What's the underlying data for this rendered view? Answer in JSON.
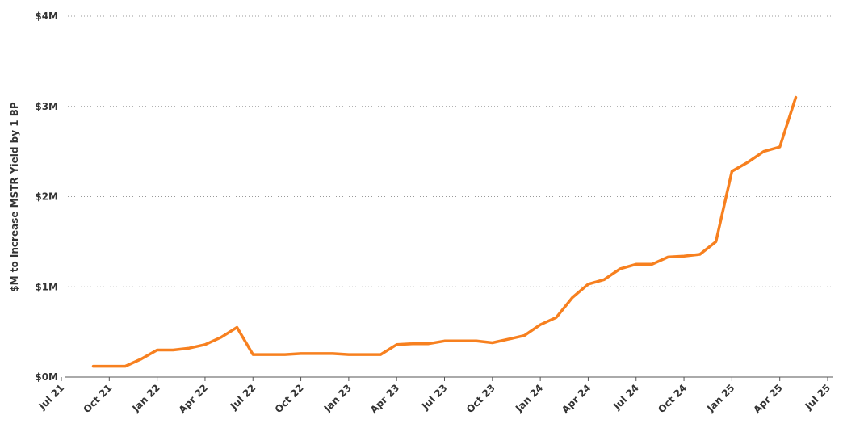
{
  "chart_data": {
    "type": "line",
    "y_axis_label": "$M to Increase MSTR Yield by 1 BP",
    "x": [
      "2021-09",
      "2021-10",
      "2021-11",
      "2021-12",
      "2022-01",
      "2022-02",
      "2022-03",
      "2022-04",
      "2022-05",
      "2022-06",
      "2022-07",
      "2022-08",
      "2022-09",
      "2022-10",
      "2022-11",
      "2022-12",
      "2023-01",
      "2023-02",
      "2023-03",
      "2023-04",
      "2023-05",
      "2023-06",
      "2023-07",
      "2023-08",
      "2023-09",
      "2023-10",
      "2023-11",
      "2023-12",
      "2024-01",
      "2024-02",
      "2024-03",
      "2024-04",
      "2024-05",
      "2024-06",
      "2024-07",
      "2024-08",
      "2024-09",
      "2024-10",
      "2024-11",
      "2024-12",
      "2025-01",
      "2025-02",
      "2025-03",
      "2025-04",
      "2025-05"
    ],
    "values": [
      0.12,
      0.12,
      0.12,
      0.2,
      0.3,
      0.3,
      0.32,
      0.36,
      0.44,
      0.55,
      0.25,
      0.25,
      0.25,
      0.26,
      0.26,
      0.26,
      0.25,
      0.25,
      0.25,
      0.36,
      0.37,
      0.37,
      0.4,
      0.4,
      0.4,
      0.38,
      0.42,
      0.46,
      0.58,
      0.66,
      0.88,
      1.03,
      1.08,
      1.2,
      1.25,
      1.25,
      1.33,
      1.34,
      1.36,
      1.5,
      2.28,
      2.38,
      2.5,
      2.55,
      3.1
    ],
    "color": "#f7801f",
    "xlim": [
      "2021-07",
      "2025-07"
    ],
    "xticks": [
      {
        "value": "2021-07",
        "label": "Jul 21"
      },
      {
        "value": "2021-10",
        "label": "Oct 21"
      },
      {
        "value": "2022-01",
        "label": "Jan 22"
      },
      {
        "value": "2022-04",
        "label": "Apr 22"
      },
      {
        "value": "2022-07",
        "label": "Jul 22"
      },
      {
        "value": "2022-10",
        "label": "Oct 22"
      },
      {
        "value": "2023-01",
        "label": "Jan 23"
      },
      {
        "value": "2023-04",
        "label": "Apr 23"
      },
      {
        "value": "2023-07",
        "label": "Jul 23"
      },
      {
        "value": "2023-10",
        "label": "Oct 23"
      },
      {
        "value": "2024-01",
        "label": "Jan 24"
      },
      {
        "value": "2024-04",
        "label": "Apr 24"
      },
      {
        "value": "2024-07",
        "label": "Jul 24"
      },
      {
        "value": "2024-10",
        "label": "Oct 24"
      },
      {
        "value": "2025-01",
        "label": "Jan 25"
      },
      {
        "value": "2025-04",
        "label": "Apr 25"
      },
      {
        "value": "2025-07",
        "label": "Jul 25"
      }
    ],
    "ylim": [
      0,
      4
    ],
    "yticks": [
      {
        "value": 0,
        "label": "$0M"
      },
      {
        "value": 1,
        "label": "$1M"
      },
      {
        "value": 2,
        "label": "$2M"
      },
      {
        "value": 3,
        "label": "$3M"
      },
      {
        "value": 4,
        "label": "$4M"
      }
    ],
    "grid": true
  }
}
